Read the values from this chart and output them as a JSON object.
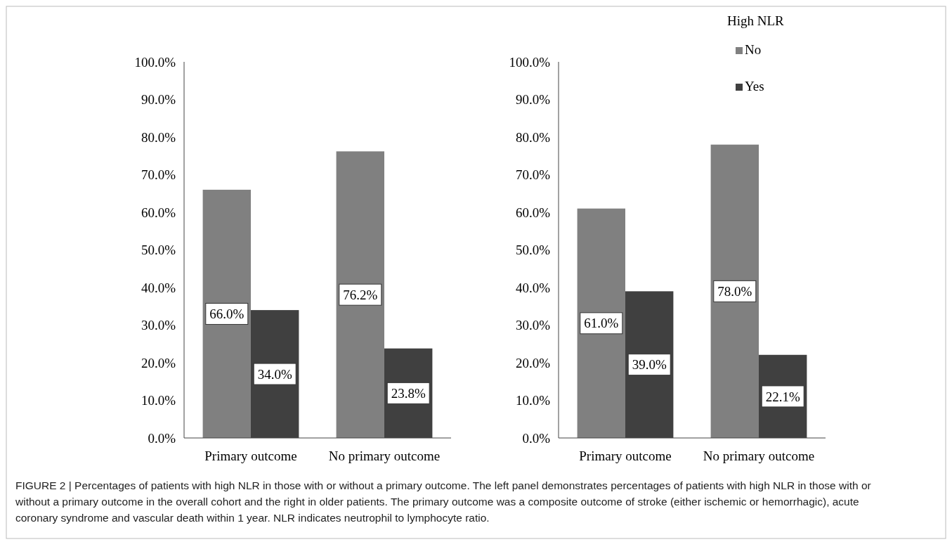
{
  "chart_data": [
    {
      "type": "bar",
      "categories": [
        "Primary outcome",
        "No primary outcome"
      ],
      "ylim": [
        0,
        100
      ],
      "yticks": [
        {
          "value": 0,
          "label": "0.0%"
        },
        {
          "value": 10,
          "label": "10.0%"
        },
        {
          "value": 20,
          "label": "20.0%"
        },
        {
          "value": 30,
          "label": "30.0%"
        },
        {
          "value": 40,
          "label": "40.0%"
        },
        {
          "value": 50,
          "label": "50.0%"
        },
        {
          "value": 60,
          "label": "60.0%"
        },
        {
          "value": 70,
          "label": "70.0%"
        },
        {
          "value": 80,
          "label": "80.0%"
        },
        {
          "value": 90,
          "label": "90.0%"
        },
        {
          "value": 100,
          "label": "100.0%"
        }
      ],
      "grid": false,
      "legend": false,
      "series": [
        {
          "color": "#808080",
          "values": [
            66.0,
            76.2
          ],
          "value_labels": [
            "66.0%",
            "76.2%"
          ]
        },
        {
          "color": "#404040",
          "values": [
            34.0,
            23.8
          ],
          "value_labels": [
            "34.0%",
            "23.8%"
          ]
        }
      ]
    },
    {
      "type": "bar",
      "categories": [
        "Primary outcome",
        "No primary outcome"
      ],
      "ylim": [
        0,
        100
      ],
      "yticks": [
        {
          "value": 0,
          "label": "0.0%"
        },
        {
          "value": 10,
          "label": "10.0%"
        },
        {
          "value": 20,
          "label": "20.0%"
        },
        {
          "value": 30,
          "label": "30.0%"
        },
        {
          "value": 40,
          "label": "40.0%"
        },
        {
          "value": 50,
          "label": "50.0%"
        },
        {
          "value": 60,
          "label": "60.0%"
        },
        {
          "value": 70,
          "label": "70.0%"
        },
        {
          "value": 80,
          "label": "80.0%"
        },
        {
          "value": 90,
          "label": "90.0%"
        },
        {
          "value": 100,
          "label": "100.0%"
        }
      ],
      "grid": false,
      "legend": "top right",
      "legend_title": "High NLR",
      "series": [
        {
          "name": "No",
          "color": "#808080",
          "values": [
            61.0,
            78.0
          ],
          "value_labels": [
            "61.0%",
            "78.0%"
          ]
        },
        {
          "name": "Yes",
          "color": "#404040",
          "values": [
            39.0,
            22.1
          ],
          "value_labels": [
            "39.0%",
            "22.1%"
          ]
        }
      ],
      "annotations": [
        "FIGURE 2 | Percentages of patients with high NLR in those with or without a primary outcome. The left panel demonstrates percentages of patients with high NLR in those with or without a primary outcome in the overall cohort and the right in older patients. The primary outcome was a composite outcome of stroke (either ischemic or hemorrhagic), acute coronary syndrome and vascular death within 1 year. NLR indicates neutrophil to lymphocyte ratio."
      ]
    }
  ]
}
